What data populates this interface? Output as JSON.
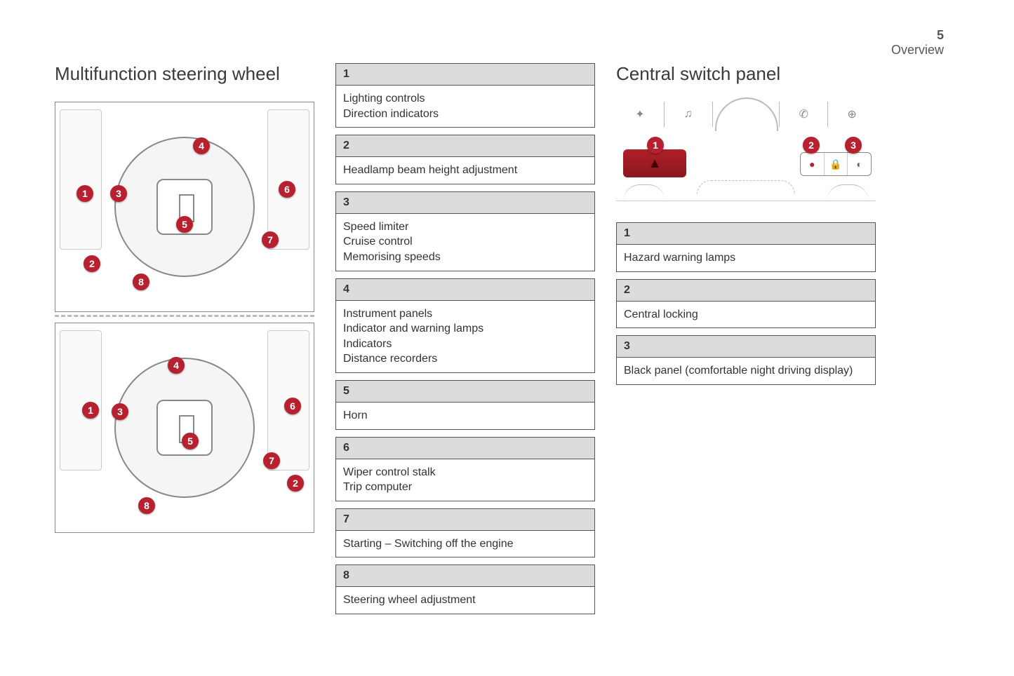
{
  "page": {
    "number": "5",
    "section": "Overview"
  },
  "colors": {
    "callout_bg": "#b7202e",
    "callout_fg": "#ffffff",
    "legend_header_bg": "#dcdcdc",
    "border": "#555555",
    "text": "#3a3a3a",
    "hazard_button": "#a8212a"
  },
  "left": {
    "title": "Multifunction steering wheel",
    "diagrams": {
      "top": {
        "callouts": [
          "1",
          "2",
          "3",
          "4",
          "5",
          "6",
          "7",
          "8"
        ]
      },
      "bottom": {
        "callouts": [
          "1",
          "2",
          "3",
          "4",
          "5",
          "6",
          "7",
          "8"
        ]
      }
    }
  },
  "mid": {
    "items": [
      {
        "num": "1",
        "lines": [
          "Lighting controls",
          "Direction indicators"
        ]
      },
      {
        "num": "2",
        "lines": [
          "Headlamp beam height adjustment"
        ]
      },
      {
        "num": "3",
        "lines": [
          "Speed limiter",
          "Cruise control",
          "Memorising speeds"
        ]
      },
      {
        "num": "4",
        "lines": [
          "Instrument panels",
          "Indicator and warning lamps",
          "Indicators",
          "Distance recorders"
        ]
      },
      {
        "num": "5",
        "lines": [
          "Horn"
        ]
      },
      {
        "num": "6",
        "lines": [
          "Wiper control stalk",
          "Trip computer"
        ]
      },
      {
        "num": "7",
        "lines": [
          "Starting – Switching off the engine"
        ]
      },
      {
        "num": "8",
        "lines": [
          "Steering wheel adjustment"
        ]
      }
    ]
  },
  "right": {
    "title": "Central switch panel",
    "diagram_callouts": [
      "1",
      "2",
      "3"
    ],
    "top_icons": [
      "nav-icon",
      "media-icon",
      "phone-icon",
      "web-icon"
    ],
    "hazard_symbol": "▲",
    "lock_symbol": "🔒",
    "contrast_symbol": "◐",
    "items": [
      {
        "num": "1",
        "lines": [
          "Hazard warning lamps"
        ]
      },
      {
        "num": "2",
        "lines": [
          "Central locking"
        ]
      },
      {
        "num": "3",
        "lines": [
          "Black panel (comfortable night driving display)"
        ]
      }
    ]
  }
}
